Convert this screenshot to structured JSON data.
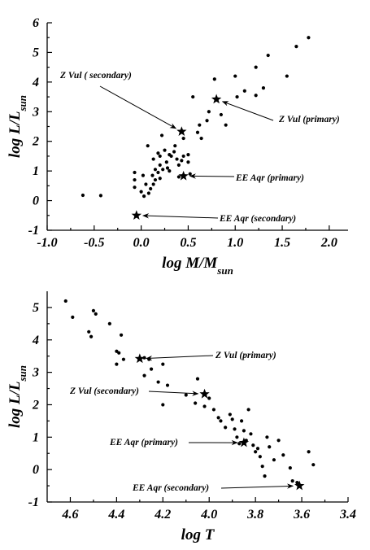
{
  "chart_data": [
    {
      "type": "scatter",
      "xlabel": "log M/M",
      "xlabel_sub": "sun",
      "ylabel": "log L/L",
      "ylabel_sub": "sun",
      "xlim": [
        -1.0,
        2.2
      ],
      "ylim": [
        -1,
        6
      ],
      "xticks": [
        -1.0,
        -0.5,
        0.0,
        0.5,
        1.0,
        1.5,
        2.0
      ],
      "xtick_labels": [
        "-1.0",
        "-0.5",
        "0.0",
        "0.5",
        "1.0",
        "1.5",
        "2.0"
      ],
      "yticks": [
        -1,
        0,
        1,
        2,
        3,
        4,
        5,
        6
      ],
      "ytick_labels": [
        "-1",
        "0",
        "1",
        "2",
        "3",
        "4",
        "5",
        "6"
      ],
      "series": [
        {
          "marker": "dot",
          "points": [
            [
              -0.62,
              0.18
            ],
            [
              -0.43,
              0.17
            ],
            [
              -0.07,
              0.95
            ],
            [
              -0.07,
              0.7
            ],
            [
              -0.07,
              0.45
            ],
            [
              0.0,
              0.3
            ],
            [
              0.02,
              0.85
            ],
            [
              0.03,
              0.15
            ],
            [
              0.05,
              0.55
            ],
            [
              0.07,
              1.85
            ],
            [
              0.08,
              0.25
            ],
            [
              0.1,
              0.4
            ],
            [
              0.12,
              0.85
            ],
            [
              0.13,
              1.4
            ],
            [
              0.13,
              0.55
            ],
            [
              0.15,
              1.05
            ],
            [
              0.15,
              0.7
            ],
            [
              0.18,
              1.6
            ],
            [
              0.18,
              0.95
            ],
            [
              0.2,
              1.5
            ],
            [
              0.2,
              1.2
            ],
            [
              0.2,
              0.75
            ],
            [
              0.22,
              2.2
            ],
            [
              0.23,
              1.05
            ],
            [
              0.25,
              1.7
            ],
            [
              0.27,
              1.3
            ],
            [
              0.28,
              1.1
            ],
            [
              0.3,
              1.55
            ],
            [
              0.3,
              1.0
            ],
            [
              0.32,
              1.5
            ],
            [
              0.35,
              1.65
            ],
            [
              0.36,
              1.85
            ],
            [
              0.38,
              1.4
            ],
            [
              0.4,
              1.2
            ],
            [
              0.4,
              0.8
            ],
            [
              0.43,
              1.35
            ],
            [
              0.45,
              1.5
            ],
            [
              0.45,
              2.1
            ],
            [
              0.5,
              1.55
            ],
            [
              0.5,
              1.3
            ],
            [
              0.52,
              0.9
            ],
            [
              0.55,
              3.5
            ],
            [
              0.6,
              2.3
            ],
            [
              0.62,
              2.55
            ],
            [
              0.64,
              2.1
            ],
            [
              0.7,
              2.7
            ],
            [
              0.72,
              3.0
            ],
            [
              0.78,
              4.1
            ],
            [
              0.85,
              2.9
            ],
            [
              0.9,
              2.55
            ],
            [
              1.0,
              4.2
            ],
            [
              1.02,
              3.5
            ],
            [
              1.1,
              3.7
            ],
            [
              1.22,
              4.5
            ],
            [
              1.22,
              3.55
            ],
            [
              1.3,
              3.8
            ],
            [
              1.35,
              4.9
            ],
            [
              1.55,
              4.2
            ],
            [
              1.65,
              5.2
            ],
            [
              1.78,
              5.5
            ]
          ]
        },
        {
          "marker": "star",
          "points": [
            [
              0.43,
              2.33
            ],
            [
              0.8,
              3.42
            ],
            [
              0.45,
              0.83
            ],
            [
              -0.05,
              -0.5
            ]
          ]
        }
      ],
      "annotations": [
        {
          "text": "Z Vul ( secondary)",
          "target": [
            0.43,
            2.33
          ]
        },
        {
          "text": "Z Vul (primary)",
          "target": [
            0.8,
            3.42
          ]
        },
        {
          "text": "EE Aqr (primary)",
          "target": [
            0.45,
            0.83
          ]
        },
        {
          "text": "EE Aqr (secondary)",
          "target": [
            -0.05,
            -0.5
          ]
        }
      ]
    },
    {
      "type": "scatter",
      "xlabel": "log T",
      "ylabel": "log L/L",
      "ylabel_sub": "sun",
      "xlim": [
        4.7,
        3.4
      ],
      "ylim": [
        -1,
        5.5
      ],
      "xticks": [
        4.6,
        4.4,
        4.2,
        4.0,
        3.8,
        3.6,
        3.4
      ],
      "xtick_labels": [
        "4.6",
        "4.4",
        "4.2",
        "4.0",
        "3.8",
        "3.6",
        "3.4"
      ],
      "yticks": [
        -1,
        0,
        1,
        2,
        3,
        4,
        5
      ],
      "ytick_labels": [
        "-1",
        "0",
        "1",
        "2",
        "3",
        "4",
        "5"
      ],
      "series": [
        {
          "marker": "dot",
          "points": [
            [
              4.62,
              5.2
            ],
            [
              4.59,
              4.7
            ],
            [
              4.5,
              4.9
            ],
            [
              4.49,
              4.8
            ],
            [
              4.52,
              4.25
            ],
            [
              4.51,
              4.1
            ],
            [
              4.43,
              4.5
            ],
            [
              4.38,
              4.15
            ],
            [
              4.4,
              3.65
            ],
            [
              4.39,
              3.6
            ],
            [
              4.37,
              3.4
            ],
            [
              4.4,
              3.25
            ],
            [
              4.28,
              3.45
            ],
            [
              4.26,
              3.4
            ],
            [
              4.25,
              3.1
            ],
            [
              4.28,
              2.9
            ],
            [
              4.2,
              3.25
            ],
            [
              4.22,
              2.7
            ],
            [
              4.18,
              2.6
            ],
            [
              4.2,
              2.0
            ],
            [
              4.1,
              2.3
            ],
            [
              4.05,
              2.8
            ],
            [
              4.0,
              2.2
            ],
            [
              4.06,
              2.05
            ],
            [
              4.02,
              1.95
            ],
            [
              3.98,
              1.85
            ],
            [
              3.96,
              1.6
            ],
            [
              3.95,
              1.5
            ],
            [
              3.93,
              1.3
            ],
            [
              3.91,
              1.7
            ],
            [
              3.9,
              1.55
            ],
            [
              3.89,
              1.25
            ],
            [
              3.88,
              1.0
            ],
            [
              3.87,
              0.8
            ],
            [
              3.86,
              1.5
            ],
            [
              3.85,
              1.2
            ],
            [
              3.84,
              0.9
            ],
            [
              3.83,
              1.85
            ],
            [
              3.82,
              1.1
            ],
            [
              3.81,
              0.75
            ],
            [
              3.8,
              0.55
            ],
            [
              3.79,
              0.65
            ],
            [
              3.78,
              0.4
            ],
            [
              3.77,
              0.1
            ],
            [
              3.76,
              -0.2
            ],
            [
              3.75,
              1.0
            ],
            [
              3.74,
              0.7
            ],
            [
              3.72,
              0.3
            ],
            [
              3.7,
              0.9
            ],
            [
              3.68,
              0.45
            ],
            [
              3.65,
              0.05
            ],
            [
              3.64,
              -0.35
            ],
            [
              3.62,
              -0.4
            ],
            [
              3.57,
              0.55
            ],
            [
              3.55,
              0.15
            ]
          ]
        },
        {
          "marker": "star",
          "points": [
            [
              4.3,
              3.42
            ],
            [
              4.02,
              2.33
            ],
            [
              3.85,
              0.83
            ],
            [
              3.61,
              -0.5
            ]
          ]
        }
      ],
      "annotations": [
        {
          "text": "Z Vul (primary)",
          "target": [
            4.3,
            3.42
          ]
        },
        {
          "text": "Z Vul (secondary)",
          "target": [
            4.02,
            2.33
          ]
        },
        {
          "text": "EE Aqr (primary)",
          "target": [
            3.85,
            0.83
          ]
        },
        {
          "text": "EE Aqr (secondary)",
          "target": [
            3.61,
            -0.5
          ]
        }
      ]
    }
  ]
}
